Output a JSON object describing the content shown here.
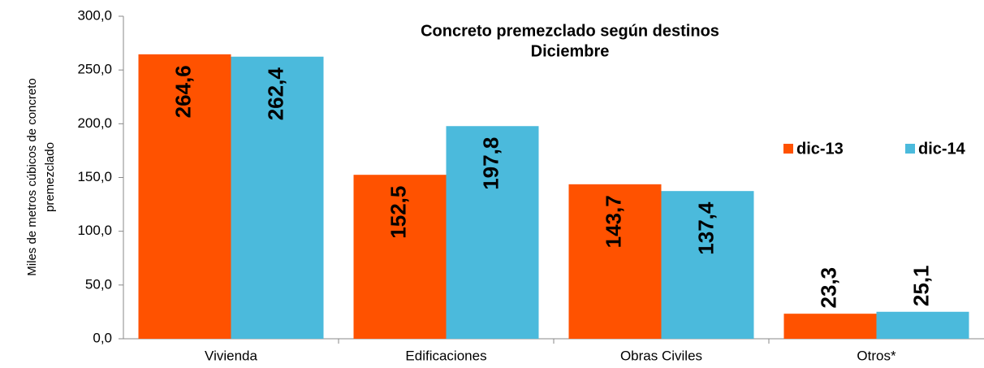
{
  "chart_data": {
    "type": "bar",
    "title": [
      "Concreto premezclado según destinos",
      "Diciembre"
    ],
    "y_label": [
      "Miles de metros cúbicos de concreto",
      "premezclado"
    ],
    "categories": [
      "Vivienda",
      "Edificaciones",
      "Obras Civiles",
      "Otros*"
    ],
    "series": [
      {
        "name": "dic-13",
        "color": "#ff5200",
        "values": [
          264.6,
          152.5,
          143.7,
          23.3
        ],
        "value_labels": [
          "264,6",
          "152,5",
          "143,7",
          "23,3"
        ]
      },
      {
        "name": "dic-14",
        "color": "#4bbadc",
        "values": [
          262.4,
          197.8,
          137.4,
          25.1
        ],
        "value_labels": [
          "262,4",
          "197,8",
          "137,4",
          "25,1"
        ]
      }
    ],
    "ylim": [
      0,
      300
    ],
    "yticks": [
      {
        "value": 0,
        "label": "0,0"
      },
      {
        "value": 50,
        "label": "50,0"
      },
      {
        "value": 100,
        "label": "100,0"
      },
      {
        "value": 150,
        "label": "150,0"
      },
      {
        "value": 200,
        "label": "200,0"
      },
      {
        "value": 250,
        "label": "250,0"
      },
      {
        "value": 300,
        "label": "300,0"
      }
    ],
    "legend": "right"
  }
}
